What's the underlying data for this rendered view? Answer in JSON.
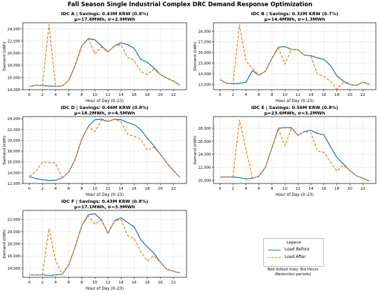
{
  "figure_title": "Fall Season Single Industrial Complex DRC Demand Response Optimization",
  "colors": {
    "before": "#1f77b4",
    "after": "#ff7f0e",
    "grid": "#e2e2e2"
  },
  "legend": {
    "title": "Legend",
    "before_label": "Load Before",
    "after_label": "Load After",
    "note_line1": "Red dotted lines: Bid Hours",
    "note_line2": "(Reduction periods)"
  },
  "chart_data": [
    {
      "type": "line",
      "title": "IDC A | Savings: 0.43M KRW (0.8%)",
      "subtitle": "μ=17.8MWh, σ=2.9MWh",
      "xlabel": "Hour of Day (0–23)",
      "ylabel": "Demand (kWh)",
      "xlim": [
        -1,
        24
      ],
      "ylim": [
        14000,
        25000
      ],
      "x_ticks": [
        0,
        2,
        4,
        6,
        8,
        10,
        12,
        14,
        16,
        18,
        20,
        22
      ],
      "y_ticks": [
        14000,
        16000,
        18000,
        20000,
        22000,
        24000
      ],
      "y_tick_labels": [
        "14,000",
        "16,000",
        "18,000",
        "20,000",
        "22,000",
        "24,000"
      ],
      "series": [
        {
          "name": "Load Before",
          "values": [
            14500,
            14750,
            14700,
            14600,
            14550,
            14600,
            15500,
            18000,
            21200,
            22400,
            22200,
            21200,
            20200,
            21200,
            21700,
            21400,
            20800,
            19000,
            18500,
            17600,
            16500,
            15900,
            15400,
            14750
          ]
        },
        {
          "name": "Load After",
          "values": [
            14500,
            14750,
            14700,
            24700,
            14550,
            14600,
            15500,
            18000,
            21200,
            22300,
            19900,
            21000,
            20200,
            21200,
            21400,
            19300,
            18800,
            17000,
            16500,
            17400,
            16500,
            15900,
            15400,
            14750
          ]
        }
      ]
    },
    {
      "type": "line",
      "title": "IDC B | Savings: 0.32M KRW (0.7%)",
      "subtitle": "μ=14.4MWh, σ=1.3MWh",
      "xlabel": "Hour of Day (0–23)",
      "ylabel": "Demand (kWh)",
      "xlim": [
        -1,
        24
      ],
      "ylim": [
        12500,
        18800
      ],
      "x_ticks": [
        0,
        2,
        4,
        6,
        8,
        10,
        12,
        14,
        16,
        18,
        20,
        22
      ],
      "y_ticks": [
        13000,
        14000,
        15000,
        16000,
        17000,
        18000
      ],
      "y_tick_labels": [
        "13,000",
        "14,000",
        "15,000",
        "16,000",
        "17,000",
        "18,000"
      ],
      "series": [
        {
          "name": "Load Before",
          "values": [
            13450,
            13100,
            13050,
            13100,
            13200,
            14300,
            13850,
            14250,
            15450,
            16500,
            16550,
            16300,
            16250,
            15750,
            15700,
            15500,
            15350,
            14800,
            13800,
            13300,
            13000,
            12900,
            13200,
            13000
          ]
        },
        {
          "name": "Load After",
          "values": [
            13450,
            13100,
            13050,
            18600,
            15200,
            14500,
            13850,
            14250,
            15450,
            16400,
            14900,
            16300,
            16250,
            15750,
            15650,
            13950,
            13750,
            13300,
            12550,
            13200,
            13000,
            12900,
            13200,
            13000
          ]
        }
      ]
    },
    {
      "type": "line",
      "title": "IDC D | Savings: 0.46M KRW (0.8%)",
      "subtitle": "μ=18.2MWh, σ=4.5MWh",
      "xlabel": "Hour of Day (0–23)",
      "ylabel": "Demand (kWh)",
      "xlim": [
        -1,
        24
      ],
      "ylim": [
        12000,
        24400
      ],
      "x_ticks": [
        0,
        2,
        4,
        6,
        8,
        10,
        12,
        14,
        16,
        18,
        20,
        22
      ],
      "y_ticks": [
        12000,
        14000,
        16000,
        18000,
        20000,
        22000,
        24000
      ],
      "y_tick_labels": [
        "12,000",
        "14,000",
        "16,000",
        "18,000",
        "20,000",
        "22,000",
        "24,000"
      ],
      "series": [
        {
          "name": "Load Before",
          "values": [
            13300,
            12900,
            12700,
            12550,
            12600,
            13000,
            14100,
            16500,
            20200,
            22600,
            23800,
            23900,
            23500,
            23900,
            23800,
            23300,
            22900,
            22000,
            20400,
            19000,
            17400,
            15800,
            14400,
            13100
          ]
        },
        {
          "name": "Load After",
          "values": [
            13300,
            14200,
            16000,
            15900,
            15800,
            13000,
            14100,
            16500,
            20200,
            22600,
            21600,
            23700,
            23500,
            23900,
            23400,
            21100,
            20800,
            20200,
            18200,
            18700,
            17400,
            15800,
            14400,
            13100
          ]
        }
      ]
    },
    {
      "type": "line",
      "title": "IDC E | Savings: 0.56M KRW (0.8%)",
      "subtitle": "μ=23.6MWh, σ=3.2MWh",
      "xlabel": "Hour of Day (0–23)",
      "ylabel": "Demand (kWh)",
      "xlim": [
        -1,
        24
      ],
      "ylim": [
        19500,
        29800
      ],
      "x_ticks": [
        0,
        2,
        4,
        6,
        8,
        10,
        12,
        14,
        16,
        18,
        20,
        22
      ],
      "y_ticks": [
        20000,
        22000,
        24000,
        26000,
        28000
      ],
      "y_tick_labels": [
        "20,000",
        "22,000",
        "24,000",
        "26,000",
        "28,000"
      ],
      "series": [
        {
          "name": "Load Before",
          "values": [
            20500,
            20500,
            20500,
            20400,
            20200,
            20300,
            20600,
            22000,
            25000,
            28000,
            28100,
            28100,
            26900,
            27500,
            27700,
            27200,
            27000,
            25200,
            23500,
            22500,
            21500,
            20700,
            20300,
            19900
          ]
        },
        {
          "name": "Load After",
          "values": [
            20500,
            20500,
            20500,
            29300,
            24800,
            20300,
            20600,
            22000,
            25000,
            27900,
            25300,
            28000,
            26900,
            27500,
            27300,
            24500,
            24300,
            22800,
            21400,
            22300,
            21500,
            20700,
            20300,
            19900
          ]
        }
      ]
    },
    {
      "type": "line",
      "title": "IDC F | Savings: 0.43M KRW (0.8%)",
      "subtitle": "μ=17.1MWh, σ=3.9MWh",
      "xlabel": "Hour of Day (0–23)",
      "ylabel": "Demand (kWh)",
      "xlim": [
        -1,
        24
      ],
      "ylim": [
        12500,
        23500
      ],
      "x_ticks": [
        0,
        2,
        4,
        6,
        8,
        10,
        12,
        14,
        16,
        18,
        20,
        22
      ],
      "y_ticks": [
        14000,
        16000,
        18000,
        20000,
        22000
      ],
      "y_tick_labels": [
        "14,000",
        "16,000",
        "18,000",
        "20,000",
        "22,000"
      ],
      "series": [
        {
          "name": "Load Before",
          "values": [
            12900,
            12900,
            12900,
            12800,
            12900,
            13000,
            14500,
            17500,
            21000,
            22800,
            22950,
            22000,
            19700,
            21800,
            22300,
            21500,
            20800,
            18700,
            17500,
            16500,
            15000,
            13800,
            13500,
            13200
          ]
        },
        {
          "name": "Load After",
          "values": [
            12900,
            12900,
            12900,
            20500,
            15300,
            13000,
            14500,
            17500,
            21000,
            22600,
            21200,
            22000,
            19700,
            21800,
            22000,
            19400,
            18900,
            16700,
            15200,
            16000,
            15000,
            13800,
            13500,
            13200
          ]
        }
      ]
    }
  ]
}
